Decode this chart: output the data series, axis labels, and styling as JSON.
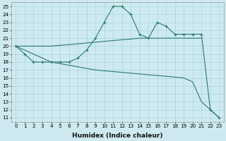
{
  "xlabel": "Humidex (Indice chaleur)",
  "background_color": "#ceeaf0",
  "grid_color": "#a8d5de",
  "line_color": "#2a7a6a",
  "xlim": [
    -0.5,
    23.5
  ],
  "ylim": [
    10.5,
    25.5
  ],
  "yticks": [
    11,
    12,
    13,
    14,
    15,
    16,
    17,
    18,
    19,
    20,
    21,
    22,
    23,
    24,
    25
  ],
  "xticks": [
    0,
    1,
    2,
    3,
    4,
    5,
    6,
    7,
    8,
    9,
    10,
    11,
    12,
    13,
    14,
    15,
    16,
    17,
    18,
    19,
    20,
    21,
    22,
    23
  ],
  "series": [
    {
      "x": [
        0,
        1,
        2,
        3,
        4,
        5,
        6,
        7,
        8,
        9,
        10,
        11,
        12,
        13,
        14,
        15,
        16,
        17,
        18,
        19,
        20,
        21,
        22,
        23
      ],
      "y": [
        20,
        19,
        18,
        18,
        18,
        18,
        18,
        18.5,
        19.5,
        21,
        23,
        25,
        25,
        24,
        21.5,
        21,
        23,
        22.5,
        21.5,
        21.5,
        21.5,
        21.5,
        12,
        11
      ],
      "has_markers": true
    },
    {
      "x": [
        0,
        4,
        9,
        14,
        19,
        21
      ],
      "y": [
        20,
        20,
        20.5,
        21,
        21,
        21
      ],
      "has_markers": false
    },
    {
      "x": [
        0,
        4,
        9,
        14,
        19,
        20,
        21,
        22,
        23
      ],
      "y": [
        20,
        18,
        17,
        16.5,
        16,
        15.5,
        13,
        12,
        11
      ],
      "has_markers": false
    }
  ]
}
